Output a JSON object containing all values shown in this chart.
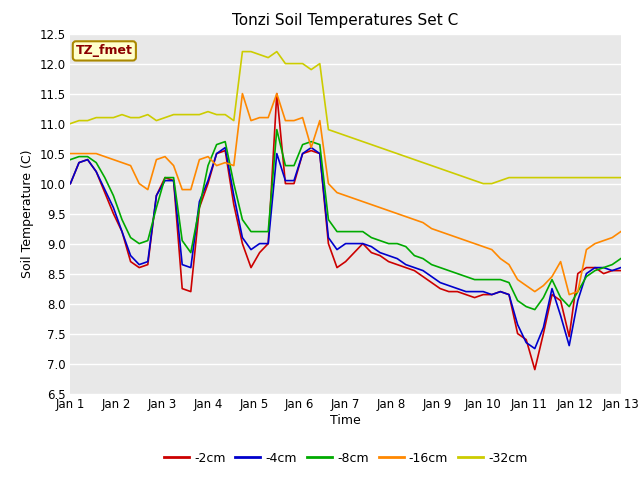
{
  "title": "Tonzi Soil Temperatures Set C",
  "xlabel": "Time",
  "ylabel": "Soil Temperature (C)",
  "annotation": "TZ_fmet",
  "ylim": [
    6.5,
    12.5
  ],
  "yticks": [
    6.5,
    7.0,
    7.5,
    8.0,
    8.5,
    9.0,
    9.5,
    10.0,
    10.5,
    11.0,
    11.5,
    12.0,
    12.5
  ],
  "bg_color": "#e8e8e8",
  "fig_color": "#ffffff",
  "series_order": [
    "-2cm",
    "-4cm",
    "-8cm",
    "-16cm",
    "-32cm"
  ],
  "series": {
    "-2cm": {
      "color": "#cc0000"
    },
    "-4cm": {
      "color": "#0000cc"
    },
    "-8cm": {
      "color": "#00aa00"
    },
    "-16cm": {
      "color": "#ff8800"
    },
    "-32cm": {
      "color": "#cccc00"
    }
  },
  "x_labels": [
    "Jan 1",
    "Jan 2",
    "Jan 3",
    "Jan 4",
    "Jan 5",
    "Jan 6",
    "Jan 7",
    "Jan 8",
    "Jan 9",
    "Jan 10",
    "Jan 11",
    "Jan 12",
    "Jan 13"
  ],
  "n_days": 12,
  "data": {
    "-2cm": [
      10.0,
      10.35,
      10.4,
      10.2,
      9.85,
      9.5,
      9.2,
      8.7,
      8.6,
      8.65,
      9.8,
      10.1,
      10.05,
      8.25,
      8.2,
      9.6,
      10.0,
      10.5,
      10.55,
      9.65,
      9.0,
      8.6,
      8.85,
      9.0,
      11.5,
      10.0,
      10.0,
      10.5,
      10.55,
      10.5,
      9.0,
      8.6,
      8.7,
      8.85,
      9.0,
      8.85,
      8.8,
      8.7,
      8.65,
      8.6,
      8.55,
      8.45,
      8.35,
      8.25,
      8.2,
      8.2,
      8.15,
      8.1,
      8.15,
      8.15,
      8.2,
      8.15,
      7.5,
      7.4,
      6.9,
      7.5,
      8.15,
      8.05,
      7.45,
      8.5,
      8.6,
      8.6,
      8.5,
      8.55,
      8.55
    ],
    "-4cm": [
      10.0,
      10.35,
      10.4,
      10.2,
      9.9,
      9.6,
      9.2,
      8.8,
      8.65,
      8.7,
      9.8,
      10.05,
      10.05,
      8.65,
      8.6,
      9.7,
      10.05,
      10.5,
      10.6,
      9.8,
      9.1,
      8.9,
      9.0,
      9.0,
      10.5,
      10.05,
      10.05,
      10.5,
      10.6,
      10.5,
      9.1,
      8.9,
      9.0,
      9.0,
      9.0,
      8.95,
      8.85,
      8.8,
      8.75,
      8.65,
      8.6,
      8.55,
      8.45,
      8.35,
      8.3,
      8.25,
      8.2,
      8.2,
      8.2,
      8.15,
      8.2,
      8.15,
      7.65,
      7.35,
      7.25,
      7.6,
      8.25,
      7.8,
      7.3,
      8.05,
      8.5,
      8.6,
      8.6,
      8.55,
      8.6
    ],
    "-8cm": [
      10.4,
      10.45,
      10.45,
      10.35,
      10.1,
      9.8,
      9.4,
      9.1,
      9.0,
      9.05,
      9.6,
      10.1,
      10.1,
      9.05,
      8.85,
      9.6,
      10.3,
      10.65,
      10.7,
      10.0,
      9.4,
      9.2,
      9.2,
      9.2,
      10.9,
      10.3,
      10.3,
      10.65,
      10.7,
      10.65,
      9.4,
      9.2,
      9.2,
      9.2,
      9.2,
      9.1,
      9.05,
      9.0,
      9.0,
      8.95,
      8.8,
      8.75,
      8.65,
      8.6,
      8.55,
      8.5,
      8.45,
      8.4,
      8.4,
      8.4,
      8.4,
      8.35,
      8.05,
      7.95,
      7.9,
      8.1,
      8.4,
      8.1,
      7.95,
      8.2,
      8.45,
      8.55,
      8.6,
      8.65,
      8.75
    ],
    "-16cm": [
      10.5,
      10.5,
      10.5,
      10.5,
      10.45,
      10.4,
      10.35,
      10.3,
      10.0,
      9.9,
      10.4,
      10.45,
      10.3,
      9.9,
      9.9,
      10.4,
      10.45,
      10.3,
      10.35,
      10.3,
      11.5,
      11.05,
      11.1,
      11.1,
      11.5,
      11.05,
      11.05,
      11.1,
      10.6,
      11.05,
      10.0,
      9.85,
      9.8,
      9.75,
      9.7,
      9.65,
      9.6,
      9.55,
      9.5,
      9.45,
      9.4,
      9.35,
      9.25,
      9.2,
      9.15,
      9.1,
      9.05,
      9.0,
      8.95,
      8.9,
      8.75,
      8.65,
      8.4,
      8.3,
      8.2,
      8.3,
      8.45,
      8.7,
      8.15,
      8.2,
      8.9,
      9.0,
      9.05,
      9.1,
      9.2
    ],
    "-32cm": [
      11.0,
      11.05,
      11.05,
      11.1,
      11.1,
      11.1,
      11.15,
      11.1,
      11.1,
      11.15,
      11.05,
      11.1,
      11.15,
      11.15,
      11.15,
      11.15,
      11.2,
      11.15,
      11.15,
      11.05,
      12.2,
      12.2,
      12.15,
      12.1,
      12.2,
      12.0,
      12.0,
      12.0,
      11.9,
      12.0,
      10.9,
      10.85,
      10.8,
      10.75,
      10.7,
      10.65,
      10.6,
      10.55,
      10.5,
      10.45,
      10.4,
      10.35,
      10.3,
      10.25,
      10.2,
      10.15,
      10.1,
      10.05,
      10.0,
      10.0,
      10.05,
      10.1,
      10.1,
      10.1,
      10.1,
      10.1,
      10.1,
      10.1,
      10.1,
      10.1,
      10.1,
      10.1,
      10.1,
      10.1,
      10.1
    ]
  }
}
